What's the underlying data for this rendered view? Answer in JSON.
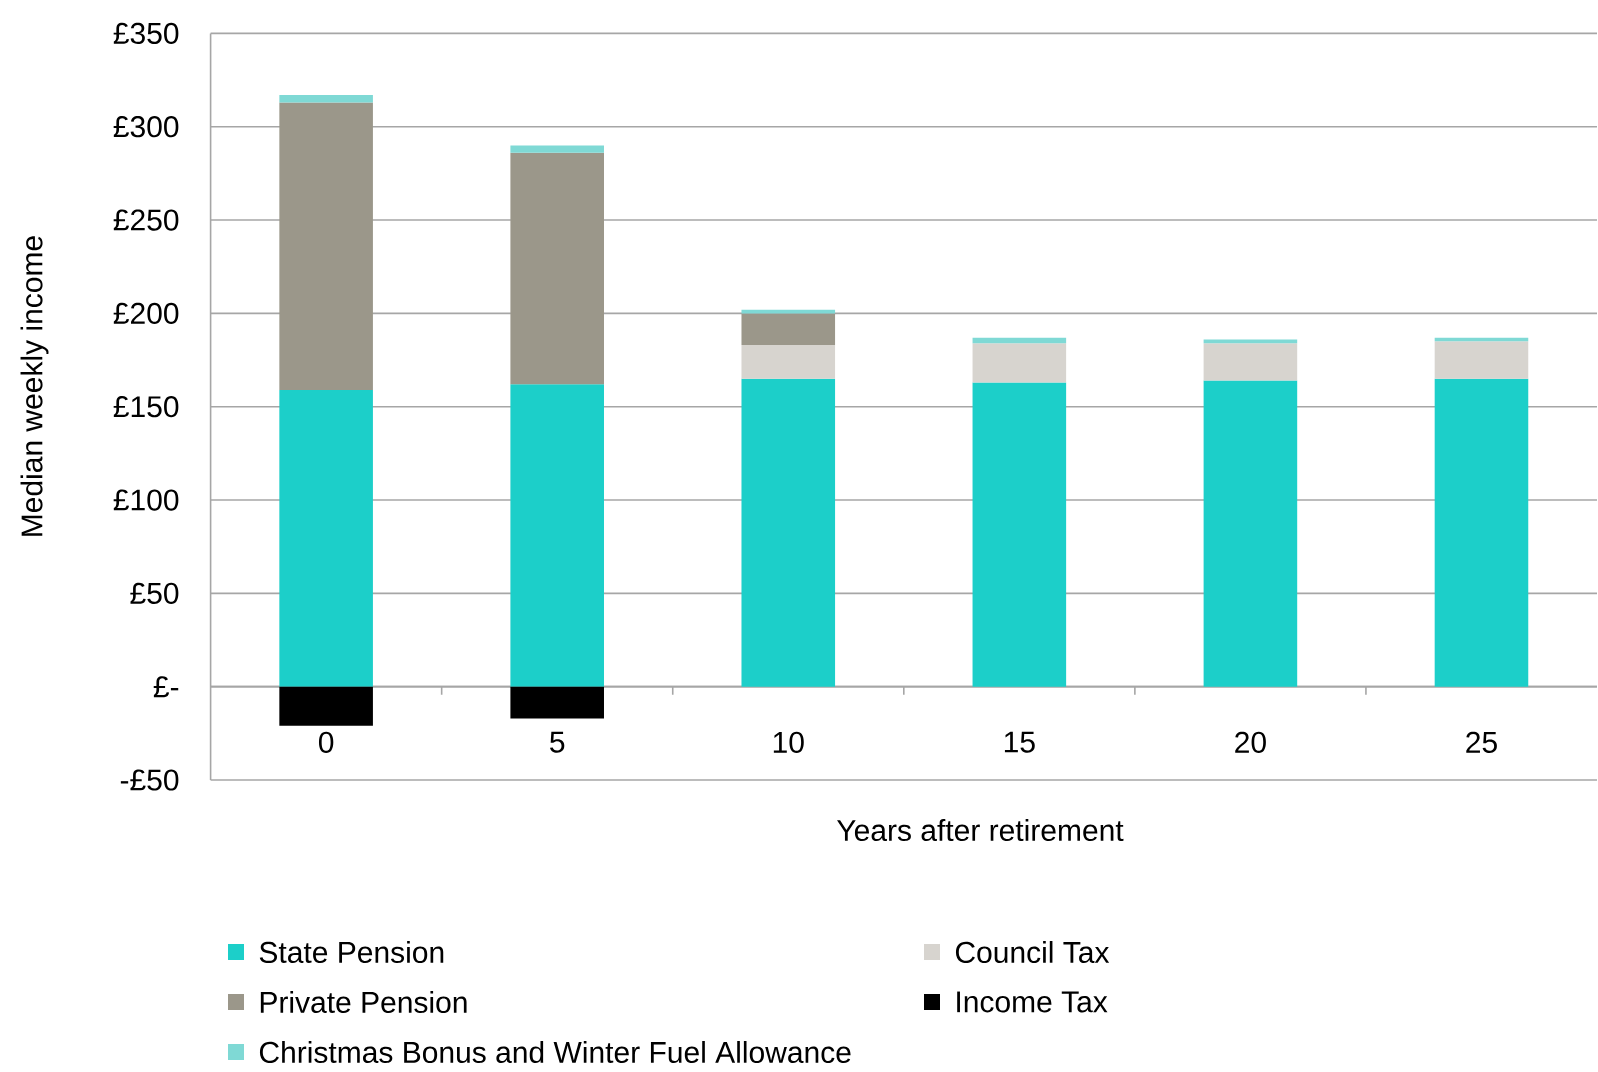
{
  "chart_data": {
    "type": "bar",
    "stacked": true,
    "xlabel": "Years after retirement",
    "ylabel": "Median weekly income",
    "categories": [
      "0",
      "5",
      "10",
      "15",
      "20",
      "25"
    ],
    "series": [
      {
        "name": "State Pension",
        "color": "#1ccfc9",
        "values": [
          159,
          162,
          165,
          163,
          164,
          165
        ]
      },
      {
        "name": "Council Tax",
        "color": "#d7d4cf",
        "values": [
          null,
          null,
          18,
          21,
          20,
          20
        ]
      },
      {
        "name": "Private Pension",
        "color": "#9b978a",
        "values": [
          154,
          124,
          17,
          null,
          null,
          null
        ]
      },
      {
        "name": "Income Tax",
        "color": "#000000",
        "values": [
          -21,
          -17,
          null,
          null,
          null,
          null
        ]
      },
      {
        "name": "Christmas Bonus and Winter Fuel Allowance",
        "color": "#7fd9d5",
        "values": [
          4,
          4,
          2,
          3,
          2,
          2
        ]
      }
    ],
    "ylim": [
      -50,
      350
    ],
    "yticks": [
      {
        "value": -50,
        "label": "-£50"
      },
      {
        "value": 0,
        "label": "£-"
      },
      {
        "value": 50,
        "label": "£50"
      },
      {
        "value": 100,
        "label": "£100"
      },
      {
        "value": 150,
        "label": "£150"
      },
      {
        "value": 200,
        "label": "£200"
      },
      {
        "value": 250,
        "label": "£250"
      },
      {
        "value": 300,
        "label": "£300"
      },
      {
        "value": 350,
        "label": "£350"
      }
    ],
    "grid": "y",
    "legend": "bottom"
  }
}
